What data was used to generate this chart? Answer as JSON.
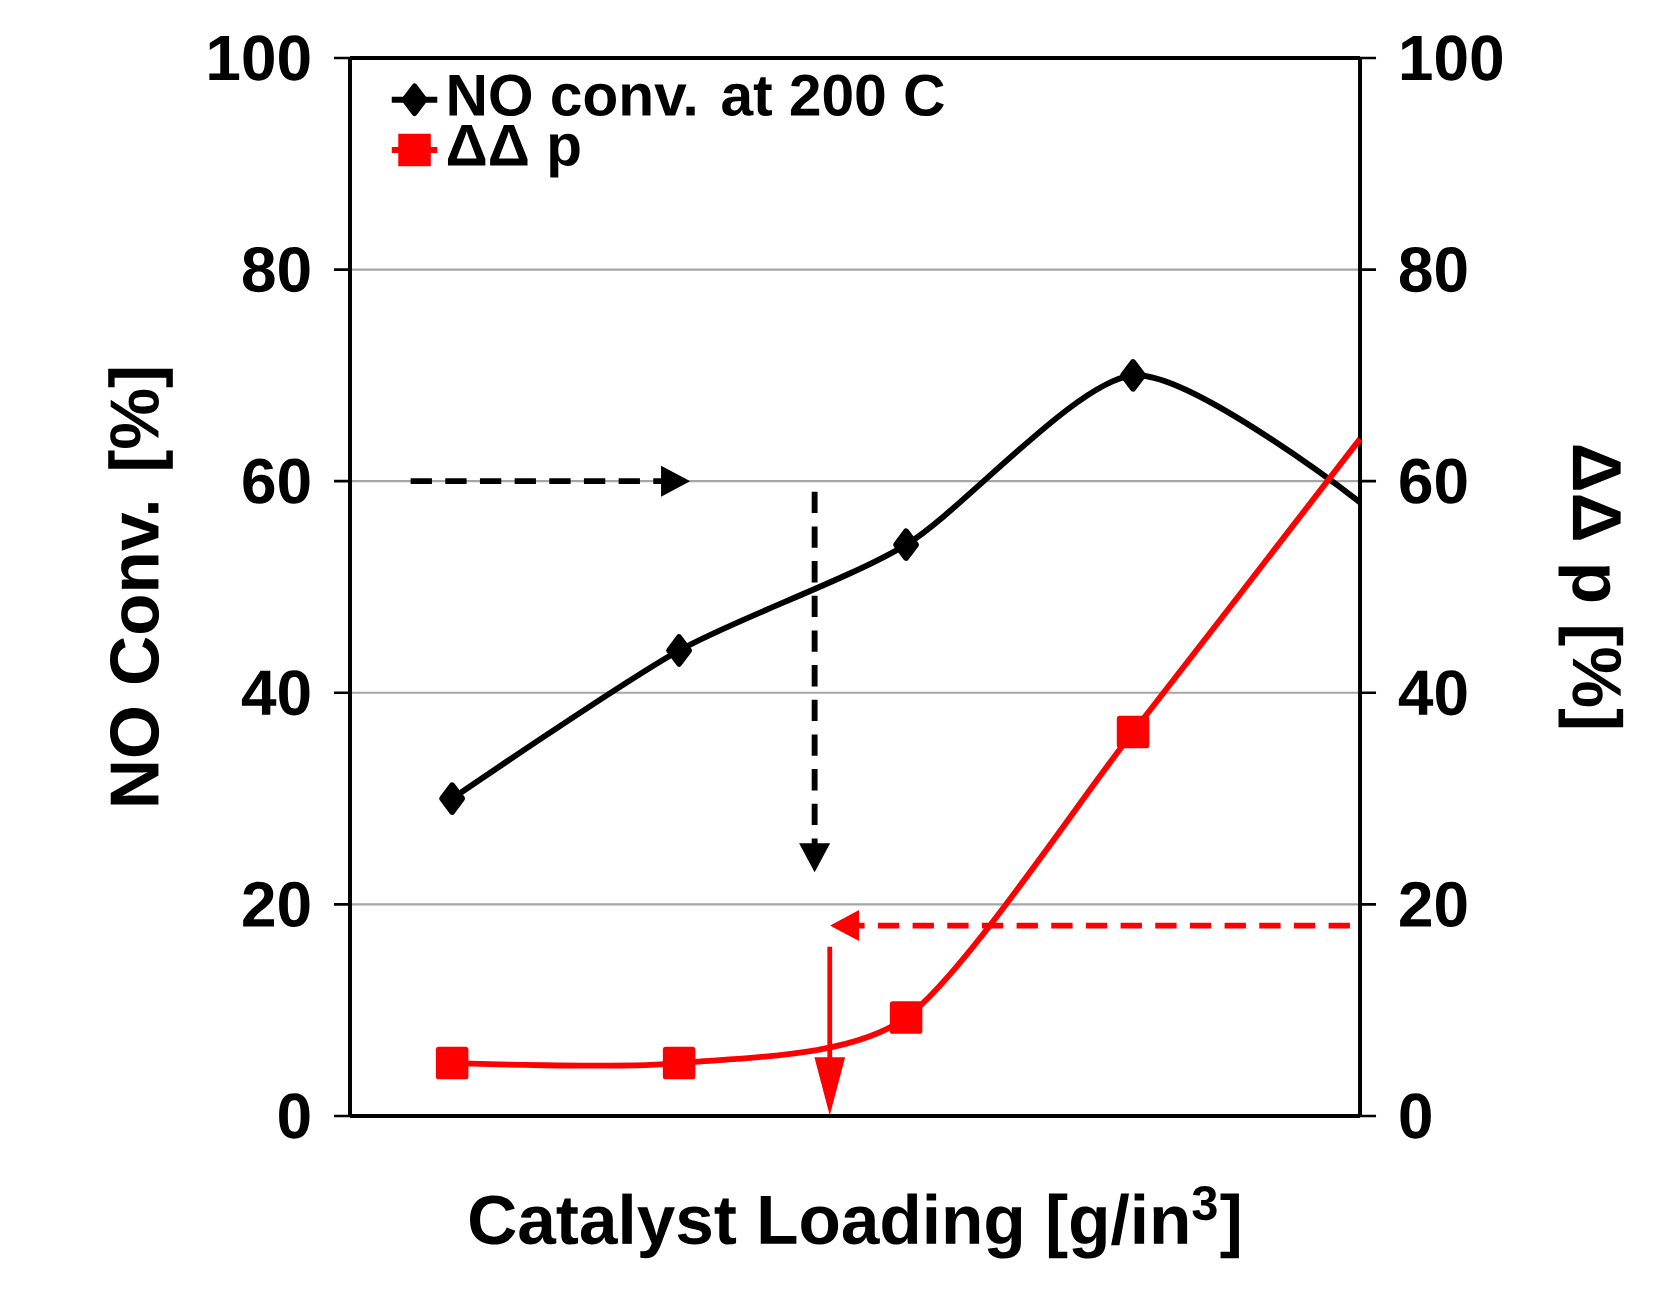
{
  "chart_data": {
    "type": "line",
    "xlabel": "Catalyst Loading [g/in$^{3}$]",
    "ylabel": "NO  Conv. [%]",
    "y2label": "ΔΔ p [%]",
    "categories": [
      null,
      null,
      null,
      null,
      null
    ],
    "ylim": [
      0,
      100
    ],
    "yticks": [
      0,
      20,
      40,
      60,
      80,
      100
    ],
    "y2lim": [
      0,
      100
    ],
    "y2ticks": [
      0,
      20,
      40,
      60,
      80,
      100
    ],
    "tick_labels": "y",
    "grid": "y",
    "legend": "top left",
    "series": [
      {
        "name": "NO conv. at 200  C",
        "color": "#000000",
        "marker": "diamond",
        "values": [
          30,
          44,
          54,
          70,
          58
        ]
      },
      {
        "name": "ΔΔ p",
        "color": "#ff0000",
        "marker": "square",
        "axis": "y2",
        "values": [
          5,
          5,
          9.3,
          36.3,
          64
        ]
      }
    ]
  }
}
